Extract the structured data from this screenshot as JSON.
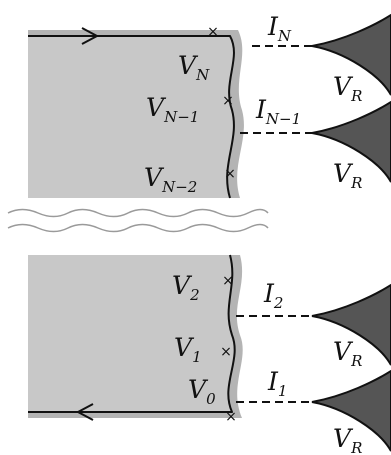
{
  "colors": {
    "sample_fill": "#c8c8c8",
    "sample_edge_halo": "#b4b4b4",
    "edge_line": "#111111",
    "tip_fill": "#555555",
    "break_lines": "#9a9a9a"
  },
  "edge_arrow_icons": [
    "arrow-right-icon",
    "arrow-left-icon"
  ],
  "junction_marker": "×",
  "voltages": [
    {
      "main": "V",
      "sub": "N"
    },
    {
      "main": "V",
      "sub": "N−1"
    },
    {
      "main": "V",
      "sub": "N−2"
    },
    {
      "main": "V",
      "sub": "2"
    },
    {
      "main": "V",
      "sub": "1"
    },
    {
      "main": "V",
      "sub": "0"
    }
  ],
  "currents": [
    {
      "main": "I",
      "sub": "N"
    },
    {
      "main": "I",
      "sub": "N−1"
    },
    {
      "main": "I",
      "sub": "2"
    },
    {
      "main": "I",
      "sub": "1"
    }
  ],
  "tips": [
    {
      "main": "V",
      "sub": "R"
    },
    {
      "main": "V",
      "sub": "R"
    },
    {
      "main": "V",
      "sub": "R"
    },
    {
      "main": "V",
      "sub": "R"
    }
  ]
}
